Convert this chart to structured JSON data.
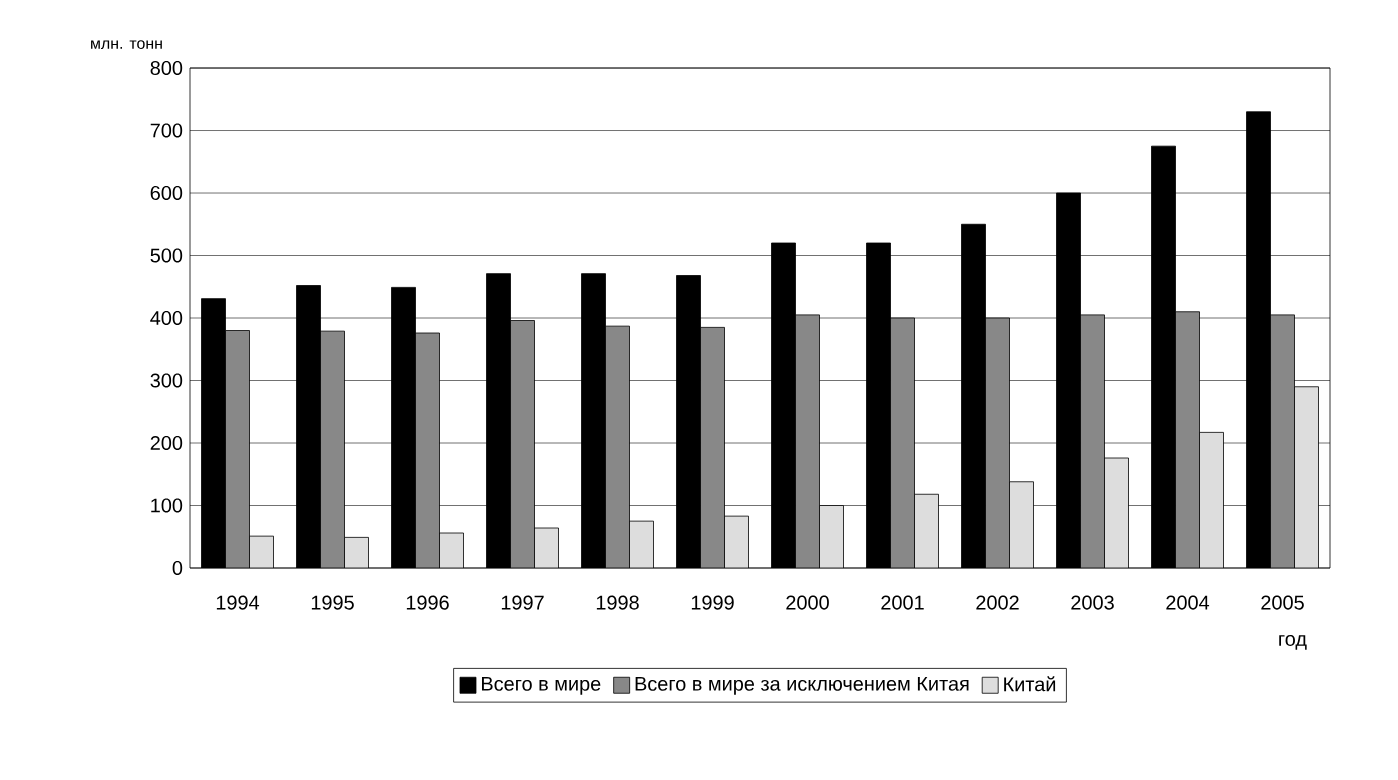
{
  "chart_data": {
    "type": "bar",
    "xlabel": "год",
    "ylabel": "млн. тонн",
    "categories": [
      "1994",
      "1995",
      "1996",
      "1997",
      "1998",
      "1999",
      "2000",
      "2001",
      "2002",
      "2003",
      "2004",
      "2005"
    ],
    "series": [
      {
        "name": "Всего в мире",
        "color": "#000000",
        "values": [
          431,
          452,
          449,
          471,
          471,
          468,
          520,
          520,
          550,
          600,
          675,
          730
        ]
      },
      {
        "name": "Всего в мире за исключением Китая",
        "color": "#888888",
        "values": [
          380,
          379,
          376,
          396,
          387,
          385,
          405,
          400,
          400,
          405,
          410,
          405
        ]
      },
      {
        "name": "Китай",
        "color": "#dddddd",
        "values": [
          51,
          49,
          56,
          64,
          75,
          83,
          100,
          118,
          138,
          176,
          217,
          290
        ]
      }
    ],
    "ylim": [
      0,
      800
    ],
    "yticks": [
      0,
      100,
      200,
      300,
      400,
      500,
      600,
      700,
      800
    ],
    "grid": "y",
    "legend": "bottom"
  }
}
